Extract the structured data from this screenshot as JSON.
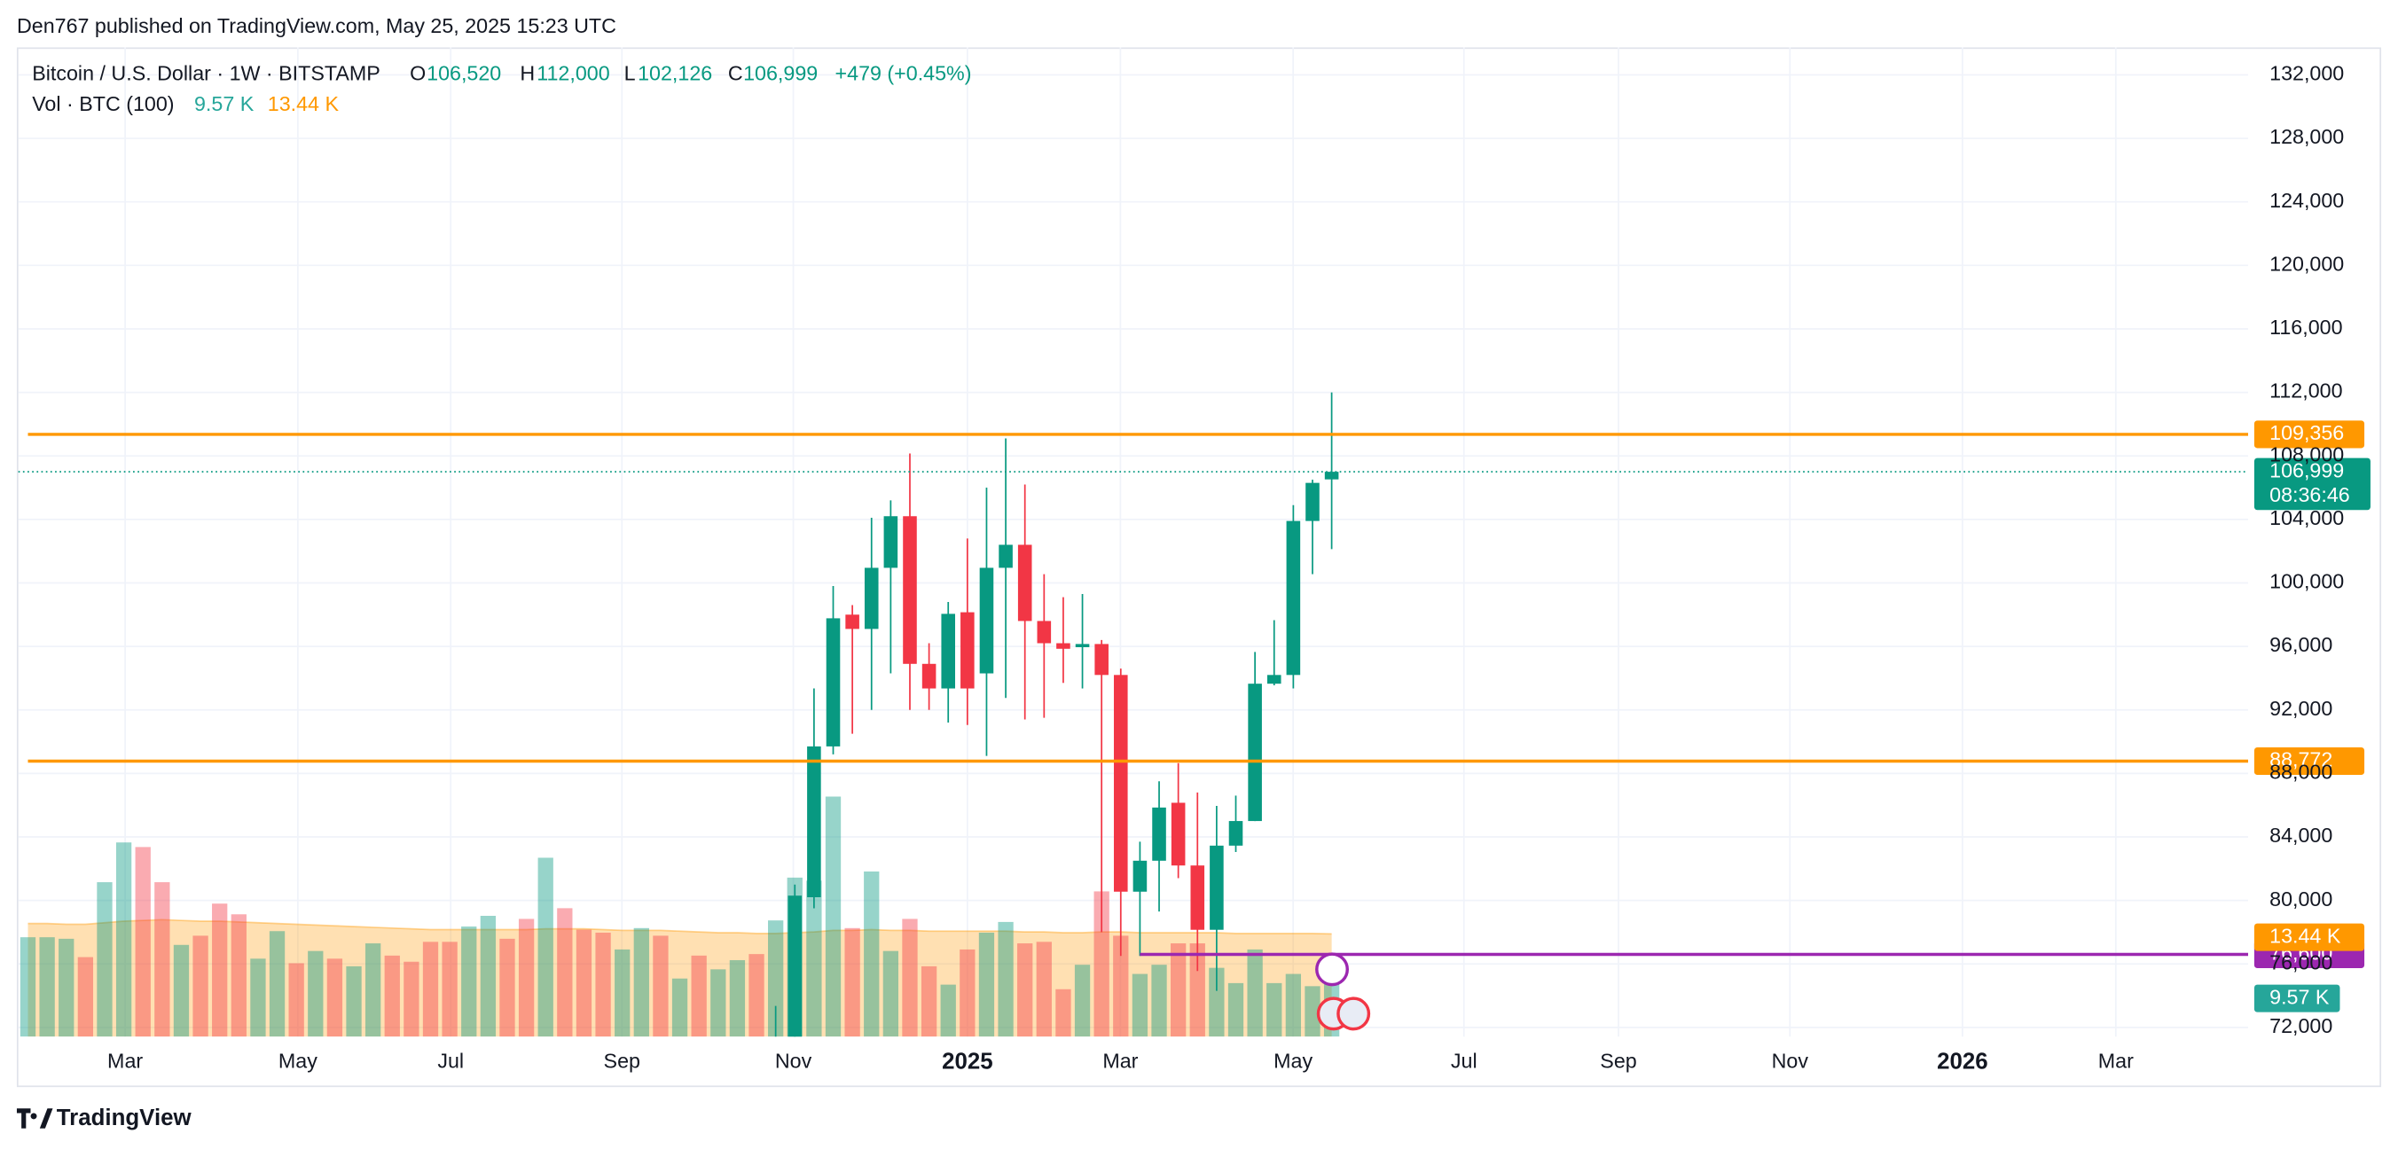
{
  "published": "Den767 published on TradingView.com, May 25, 2025 15:23 UTC",
  "brand": "TradingView",
  "chart_data": {
    "type": "candlestick",
    "title": "Bitcoin / U.S. Dollar · 1W · BITSTAMP",
    "ohlc_letters": [
      "O",
      "H",
      "L",
      "C"
    ],
    "ohlc_labels": [
      "106,520",
      "112,000",
      "102,126",
      "106,999"
    ],
    "change_label": "+479 (+0.45%)",
    "volume_title": "Vol · BTC (100)",
    "up_color": "#089981",
    "down_color": "#f23645",
    "open": [
      null,
      null,
      null,
      null,
      null,
      null,
      null,
      null,
      null,
      null,
      null,
      null,
      null,
      null,
      null,
      null,
      null,
      null,
      null,
      null,
      null,
      null,
      null,
      null,
      null,
      null,
      null,
      null,
      null,
      null,
      null,
      null,
      null,
      null,
      null,
      null,
      null,
      null,
      null,
      68000,
      69400,
      80200,
      89700,
      98000,
      97100,
      100950,
      104200,
      94900,
      93350,
      98150,
      94300,
      100950,
      102400,
      97600,
      96200,
      95950,
      96150,
      94200,
      80550,
      82500,
      86150,
      82200,
      78150,
      83450,
      85000,
      93650,
      94200,
      103900,
      106520
    ],
    "high": [
      null,
      null,
      null,
      null,
      null,
      null,
      null,
      null,
      null,
      null,
      null,
      null,
      null,
      null,
      null,
      null,
      null,
      null,
      null,
      null,
      null,
      null,
      null,
      null,
      null,
      null,
      null,
      null,
      null,
      null,
      null,
      null,
      null,
      null,
      null,
      null,
      null,
      null,
      null,
      73350,
      81000,
      93350,
      99800,
      98600,
      104100,
      105200,
      108150,
      96200,
      98800,
      102800,
      106000,
      109100,
      106200,
      100550,
      99100,
      99300,
      96400,
      94600,
      83700,
      87500,
      88650,
      86800,
      85950,
      86600,
      95650,
      97650,
      104900,
      106500,
      112000
    ],
    "low": [
      null,
      null,
      null,
      null,
      null,
      null,
      null,
      null,
      null,
      null,
      null,
      null,
      null,
      null,
      null,
      null,
      null,
      null,
      null,
      null,
      null,
      null,
      null,
      null,
      null,
      null,
      null,
      null,
      null,
      null,
      null,
      null,
      null,
      null,
      null,
      null,
      null,
      null,
      null,
      66800,
      66800,
      79500,
      89200,
      90500,
      92000,
      94300,
      92000,
      92000,
      91200,
      91050,
      89100,
      92750,
      91400,
      91500,
      93700,
      93350,
      78000,
      76500,
      76500,
      79300,
      81400,
      75550,
      74300,
      83050,
      85000,
      93550,
      93350,
      100550,
      102126
    ],
    "close": [
      null,
      null,
      null,
      null,
      null,
      null,
      null,
      null,
      null,
      null,
      null,
      null,
      null,
      null,
      null,
      null,
      null,
      null,
      null,
      null,
      null,
      null,
      null,
      null,
      null,
      null,
      null,
      null,
      null,
      null,
      null,
      null,
      null,
      null,
      null,
      null,
      null,
      null,
      null,
      69400,
      80300,
      89700,
      97770,
      97100,
      100950,
      104200,
      94900,
      93350,
      98050,
      93350,
      100950,
      102400,
      97600,
      96200,
      95850,
      96150,
      94200,
      80550,
      82500,
      85850,
      82200,
      78150,
      83450,
      85000,
      93650,
      94200,
      103900,
      106300,
      106999
    ],
    "volume": [
      13,
      13,
      12.8,
      10.4,
      20.2,
      25.4,
      24.8,
      20.2,
      12,
      13.2,
      17.4,
      16,
      10.2,
      13.8,
      9.6,
      11.2,
      10.2,
      9.2,
      12.2,
      10.6,
      9.8,
      12.4,
      12.4,
      14.4,
      15.8,
      12.8,
      15.4,
      23.4,
      16.8,
      14,
      13.6,
      11.4,
      14.2,
      13.2,
      7.6,
      10.6,
      8.8,
      10,
      10.8,
      15.2,
      20.8,
      20.4,
      31.4,
      14.2,
      21.6,
      11.2,
      15.4,
      9.2,
      6.8,
      11.4,
      13.6,
      15,
      12.2,
      12.4,
      6.2,
      9.4,
      19,
      13.2,
      8.2,
      9.4,
      12.2,
      12.2,
      9,
      7,
      11.4,
      7,
      8.2,
      6.6,
      9.57
    ],
    "volume_direction": [
      "up",
      "up",
      "up",
      "down",
      "up",
      "up",
      "down",
      "down",
      "up",
      "down",
      "down",
      "down",
      "up",
      "up",
      "down",
      "up",
      "down",
      "up",
      "up",
      "down",
      "down",
      "down",
      "down",
      "up",
      "up",
      "down",
      "down",
      "up",
      "down",
      "down",
      "down",
      "up",
      "up",
      "down",
      "up",
      "down",
      "up",
      "up",
      "down",
      "up",
      "up",
      "up",
      "up",
      "down",
      "up",
      "up",
      "down",
      "down",
      "up",
      "down",
      "up",
      "up",
      "down",
      "down",
      "down",
      "up",
      "down",
      "down",
      "up",
      "up",
      "down",
      "down",
      "up",
      "up",
      "up",
      "up",
      "up",
      "up",
      "up"
    ],
    "volume_ma": [
      14.8,
      14.8,
      14.7,
      14.7,
      14.9,
      15.1,
      15.2,
      15.3,
      15.2,
      15.1,
      15.1,
      15.0,
      14.9,
      14.8,
      14.7,
      14.6,
      14.5,
      14.4,
      14.3,
      14.2,
      14.1,
      14.0,
      14.0,
      14.0,
      14.0,
      14.0,
      14.0,
      14.1,
      14.1,
      14.1,
      14.0,
      13.9,
      13.9,
      13.9,
      13.8,
      13.7,
      13.6,
      13.6,
      13.5,
      13.5,
      13.6,
      13.7,
      13.9,
      13.9,
      14.0,
      13.9,
      13.9,
      13.8,
      13.8,
      13.8,
      13.8,
      13.8,
      13.7,
      13.7,
      13.6,
      13.6,
      13.7,
      13.7,
      13.6,
      13.6,
      13.6,
      13.6,
      13.6,
      13.5,
      13.5,
      13.5,
      13.5,
      13.5,
      13.44
    ],
    "volume_last_label": "9.57 K",
    "volume_ma_label": "13.44 K",
    "volume_ma_color": "#ff9800",
    "volume_ylim": [
      0,
      40
    ],
    "xlim": [
      -0.5,
      115.8
    ],
    "xticks": [
      {
        "value": 5.07,
        "label": "Mar"
      },
      {
        "value": 14.08,
        "label": "May"
      },
      {
        "value": 22.05,
        "label": "Jul"
      },
      {
        "value": 30.98,
        "label": "Sep"
      },
      {
        "value": 39.92,
        "label": "Nov"
      },
      {
        "value": 49.0,
        "label": "2025"
      },
      {
        "value": 56.98,
        "label": "Mar"
      },
      {
        "value": 65.99,
        "label": "May"
      },
      {
        "value": 74.9,
        "label": "Jul"
      },
      {
        "value": 82.96,
        "label": "Sep"
      },
      {
        "value": 91.9,
        "label": "Nov"
      },
      {
        "value": 100.9,
        "label": "2026"
      },
      {
        "value": 108.9,
        "label": "Mar"
      }
    ],
    "ylim": [
      71420,
      133730
    ],
    "yticks": [
      {
        "value": 72000,
        "label": "72,000"
      },
      {
        "value": 76000,
        "label": "76,000"
      },
      {
        "value": 80000,
        "label": "80,000"
      },
      {
        "value": 84000,
        "label": "84,000"
      },
      {
        "value": 88000,
        "label": "88,000"
      },
      {
        "value": 92000,
        "label": "92,000"
      },
      {
        "value": 96000,
        "label": "96,000"
      },
      {
        "value": 100000,
        "label": "100,000"
      },
      {
        "value": 104000,
        "label": "104,000"
      },
      {
        "value": 108000,
        "label": "108,000"
      },
      {
        "value": 112000,
        "label": "112,000"
      },
      {
        "value": 116000,
        "label": "116,000"
      },
      {
        "value": 120000,
        "label": "120,000"
      },
      {
        "value": 124000,
        "label": "124,000"
      },
      {
        "value": 128000,
        "label": "128,000"
      },
      {
        "value": 132000,
        "label": "132,000"
      }
    ],
    "grid": true,
    "levels": [
      {
        "value": 109356,
        "label": "109,356",
        "color": "#ff9800",
        "start": 0
      },
      {
        "value": 88772,
        "label": "88,772",
        "color": "#ff9800",
        "start": 0
      },
      {
        "value": 76600,
        "label": "76,600",
        "color": "#9c27b0",
        "start": 58
      }
    ],
    "price_line": {
      "value": 106999,
      "label": "106,999",
      "timer": "08:36:46",
      "color": "#089981"
    }
  }
}
